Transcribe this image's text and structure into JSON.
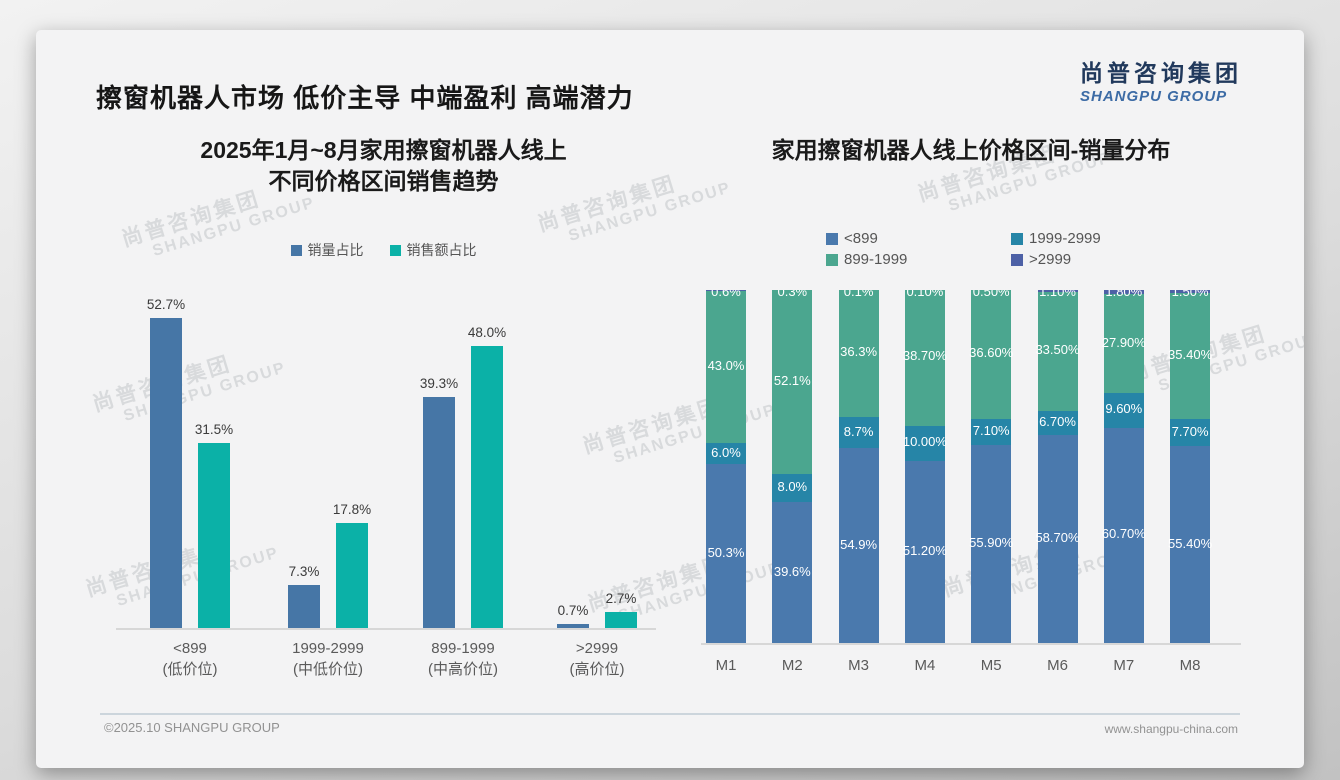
{
  "slide": {
    "title": "擦窗机器人市场 低价主导 中端盈利 高端潜力",
    "logo": {
      "cn": "尚普咨询集团",
      "en": "SHANGPU GROUP"
    },
    "watermark": {
      "line1": "尚普咨询集团",
      "line2": "SHANGPU GROUP"
    },
    "footer": {
      "copyright": "©2025.10 SHANGPU GROUP",
      "website": "www.shangpu-china.com"
    }
  },
  "chart_data": [
    {
      "type": "bar",
      "title": "2025年1月~8月家用擦窗机器人线上 不同价格区间销售趋势",
      "title_lines": [
        "2025年1月~8月家用擦窗机器人线上",
        "不同价格区间销售趋势"
      ],
      "categories": [
        {
          "range": "<899",
          "tier": "(低价位)"
        },
        {
          "range": "1999-2999",
          "tier": "(中低价位)"
        },
        {
          "range": "899-1999",
          "tier": "(中高价位)"
        },
        {
          "range": ">2999",
          "tier": "(高价位)"
        }
      ],
      "series": [
        {
          "name": "销量占比",
          "color": "#4676a6",
          "values": [
            52.7,
            7.3,
            39.3,
            0.7
          ],
          "labels": [
            "52.7%",
            "7.3%",
            "39.3%",
            "0.7%"
          ]
        },
        {
          "name": "销售额占比",
          "color": "#0bb1a7",
          "values": [
            31.5,
            17.8,
            48.0,
            2.7
          ],
          "labels": [
            "31.5%",
            "17.8%",
            "48.0%",
            "2.7%"
          ]
        }
      ],
      "ylim": [
        0,
        57
      ],
      "grid": false,
      "legend_position": "top-center",
      "data_label_color": "#3a3a3a"
    },
    {
      "type": "stacked-bar",
      "title": "家用擦窗机器人线上价格区间-销量分布",
      "categories": [
        "M1",
        "M2",
        "M3",
        "M4",
        "M5",
        "M6",
        "M7",
        "M8"
      ],
      "stack_order_bottom_to_top": [
        "<899",
        "1999-2999",
        "899-1999",
        ">2999"
      ],
      "legend_order": [
        "<899",
        "1999-2999",
        "899-1999",
        ">2999"
      ],
      "series": [
        {
          "name": "<899",
          "color": "#4a79ad",
          "values": [
            50.3,
            39.6,
            54.9,
            51.2,
            55.9,
            58.7,
            60.7,
            55.4
          ],
          "labels": [
            "50.3%",
            "39.6%",
            "54.9%",
            "51.20%",
            "55.90%",
            "58.70%",
            "60.70%",
            "55.40%"
          ]
        },
        {
          "name": "1999-2999",
          "color": "#2685a7",
          "values": [
            6.0,
            8.0,
            8.7,
            10.0,
            7.1,
            6.7,
            9.6,
            7.7
          ],
          "labels": [
            "6.0%",
            "8.0%",
            "8.7%",
            "10.00%",
            "7.10%",
            "6.70%",
            "9.60%",
            "7.70%"
          ]
        },
        {
          "name": "899-1999",
          "color": "#4ba68f",
          "values": [
            43.0,
            52.1,
            36.3,
            38.7,
            36.6,
            33.5,
            27.9,
            35.4
          ],
          "labels": [
            "43.0%",
            "52.1%",
            "36.3%",
            "38.70%",
            "36.60%",
            "33.50%",
            "27.90%",
            "35.40%"
          ]
        },
        {
          "name": ">2999",
          "color": "#4d61a6",
          "values": [
            0.6,
            0.3,
            0.1,
            0.1,
            0.5,
            1.1,
            1.8,
            1.5
          ],
          "labels": [
            "0.6%",
            "0.3%",
            "0.1%",
            "0.10%",
            "0.50%",
            "1.10%",
            "1.80%",
            "1.50%"
          ]
        }
      ],
      "ylim": [
        0,
        100
      ],
      "grid": false,
      "legend_position": "top-center",
      "data_label_color": "#ffffff"
    }
  ]
}
